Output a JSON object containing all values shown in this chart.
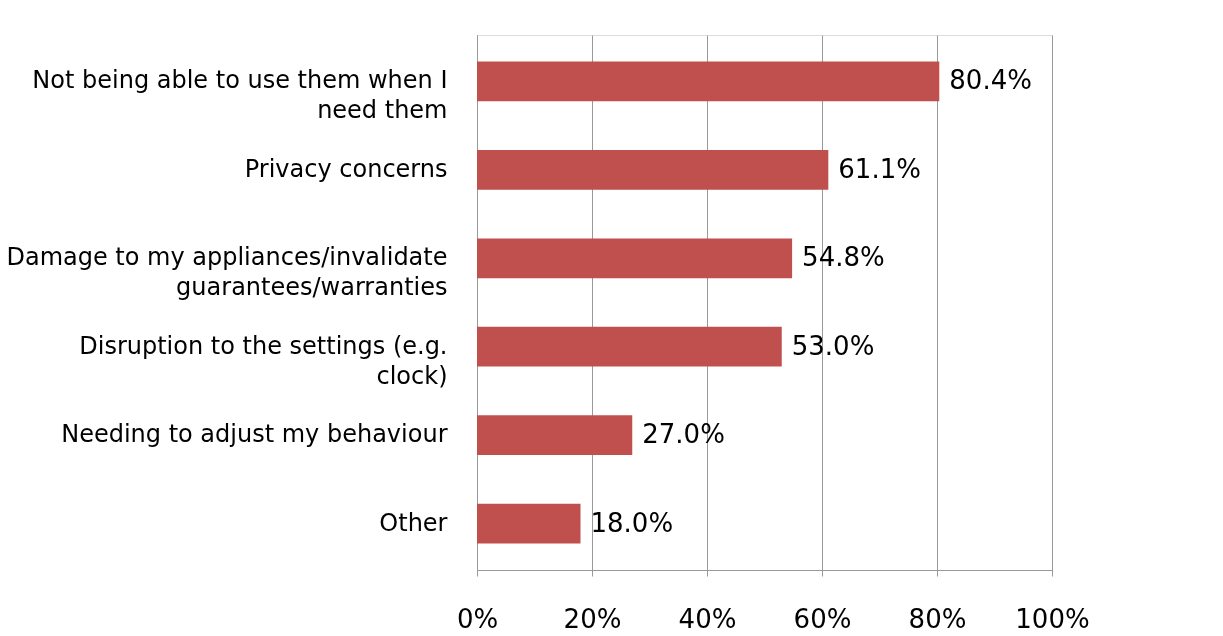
{
  "chart_data": {
    "type": "bar",
    "orientation": "horizontal",
    "categories": [
      "Not being able to use them when I need them",
      "Privacy concerns",
      "Damage to my appliances/invalidate guarantees/warranties",
      "Disruption to the settings (e.g. clock)",
      "Needing to adjust my behaviour",
      "Other"
    ],
    "values": [
      80.4,
      61.1,
      54.8,
      53.0,
      27.0,
      18.0
    ],
    "color": "#c0504d",
    "value_labels": [
      "80.4%",
      "61.1%",
      "54.8%",
      "53.0%",
      "27.0%",
      "18.0%"
    ],
    "xlim": [
      0,
      100
    ],
    "xticks": [
      {
        "value": 0,
        "label": "0%"
      },
      {
        "value": 20,
        "label": "20%"
      },
      {
        "value": 40,
        "label": "40%"
      },
      {
        "value": 60,
        "label": "60%"
      },
      {
        "value": 80,
        "label": "80%"
      },
      {
        "value": 100,
        "label": "100%"
      }
    ],
    "grid": "x"
  }
}
